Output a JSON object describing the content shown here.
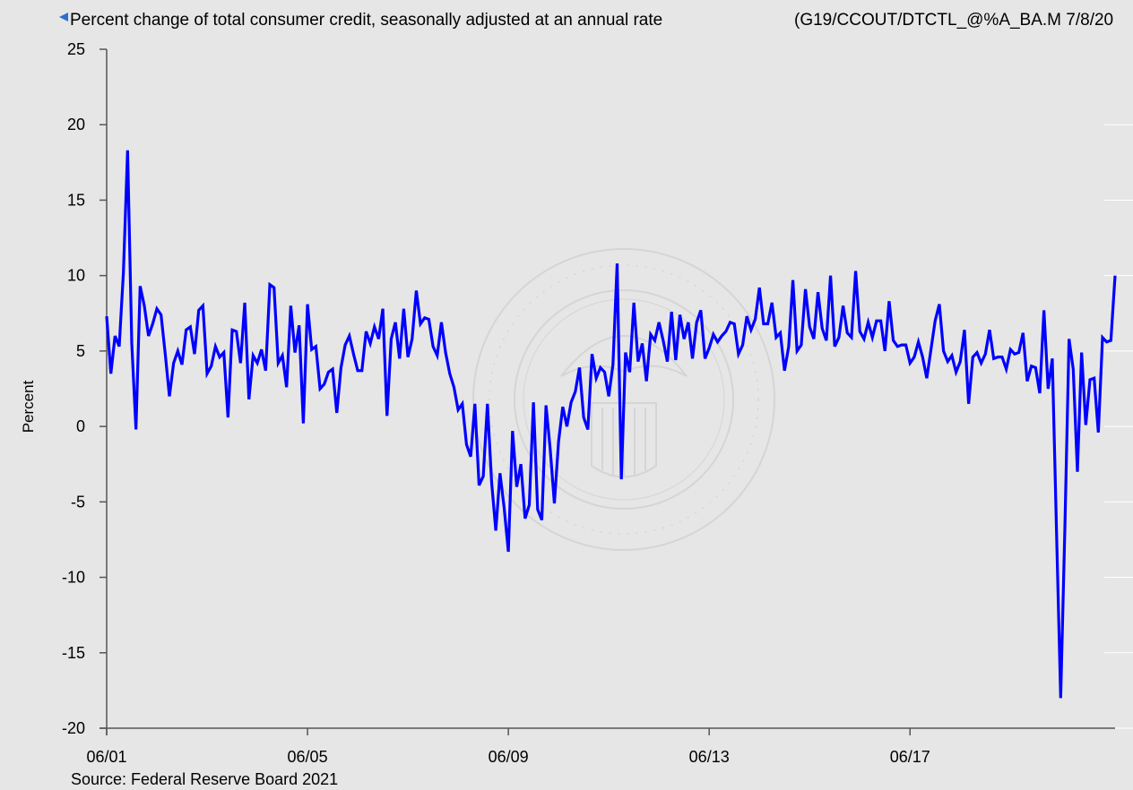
{
  "header": {
    "title": "Percent change of total consumer credit, seasonally adjusted at an annual rate",
    "series_code": "(G19/CCOUT/DTCTL_@%A_BA.M 7/8/20"
  },
  "footer": {
    "source": "Source: Federal Reserve Board 2021"
  },
  "colors": {
    "background": "#e6e6e6",
    "line": "#0000ff",
    "axis": "#555555",
    "gridline": "#ffffff",
    "back_arrow": "#2a6fcf"
  },
  "icons": {
    "back": "back-arrow-icon"
  },
  "chart_data": {
    "type": "line",
    "title": "Percent change of total consumer credit, seasonally adjusted at an annual rate",
    "xlabel": "",
    "ylabel": "Percent",
    "ylim": [
      -20,
      25
    ],
    "yticks": [
      "25",
      "20",
      "15",
      "10",
      "5",
      "0",
      "-5",
      "-10",
      "-15",
      "-20"
    ],
    "ytick_values": [
      25,
      20,
      15,
      10,
      5,
      0,
      -5,
      -10,
      -15,
      -20
    ],
    "xticks": [
      "06/01",
      "06/05",
      "06/09",
      "06/13",
      "06/17"
    ],
    "x_start": "2001-06",
    "x_end": "2021-05",
    "grid": false,
    "legend": "none",
    "series": [
      {
        "values": [
          7.3,
          3.5,
          6.0,
          5.3,
          10.2,
          18.3,
          5.5,
          -0.2,
          9.3,
          8.0,
          6.0,
          6.8,
          7.8,
          7.4,
          4.8,
          2.0,
          4.2,
          5.0,
          4.1,
          6.4,
          6.6,
          4.8,
          7.7,
          8.0,
          3.5,
          4.0,
          5.3,
          4.6,
          4.9,
          0.6,
          6.4,
          6.3,
          4.2,
          8.2,
          1.8,
          4.7,
          4.2,
          5.1,
          3.7,
          9.4,
          9.2,
          4.2,
          4.7,
          2.6,
          8.0,
          4.9,
          6.7,
          0.2,
          8.1,
          5.1,
          5.3,
          2.5,
          2.8,
          3.6,
          3.8,
          0.9,
          3.9,
          5.4,
          6.0,
          4.8,
          3.7,
          3.7,
          6.3,
          5.5,
          6.6,
          5.8,
          7.8,
          0.7,
          5.8,
          6.9,
          4.5,
          7.8,
          4.6,
          5.8,
          9.0,
          6.8,
          7.2,
          7.1,
          5.3,
          4.7,
          6.9,
          4.9,
          3.5,
          2.6,
          1.1,
          1.5,
          -1.2,
          -2.0,
          1.5,
          -3.9,
          -3.3,
          1.5,
          -3.7,
          -6.9,
          -3.1,
          -5.4,
          -8.3,
          -0.3,
          -4.0,
          -2.5,
          -6.1,
          -5.2,
          1.6,
          -5.5,
          -6.2,
          1.4,
          -1.5,
          -5.1,
          -1.0,
          1.3,
          0.0,
          1.6,
          2.3,
          3.9,
          0.6,
          -0.2,
          4.8,
          3.2,
          3.9,
          3.6,
          2.0,
          4.1,
          10.8,
          -3.5,
          4.9,
          3.6,
          8.2,
          4.3,
          5.5,
          3.0,
          6.1,
          5.7,
          6.9,
          5.7,
          4.3,
          7.6,
          4.4,
          7.4,
          5.8,
          6.9,
          4.5,
          6.9,
          7.7,
          4.5,
          5.2,
          6.1,
          5.6,
          6.0,
          6.3,
          6.9,
          6.8,
          4.8,
          5.4,
          7.3,
          6.4,
          7.1,
          9.2,
          6.8,
          6.8,
          8.2,
          5.9,
          6.2,
          3.7,
          5.3,
          9.7,
          5.0,
          5.4,
          9.1,
          6.6,
          5.8,
          8.9,
          6.5,
          5.7,
          10.0,
          5.3,
          5.9,
          8.0,
          6.2,
          5.9,
          10.3,
          6.3,
          5.8,
          6.9,
          5.9,
          7.0,
          7.0,
          5.0,
          8.3,
          5.7,
          5.3,
          5.4,
          5.4,
          4.2,
          4.6,
          5.6,
          4.6,
          3.2,
          5.1,
          7.0,
          8.1,
          5.0,
          4.3,
          4.7,
          3.6,
          4.3,
          6.4,
          1.5,
          4.6,
          4.9,
          4.2,
          4.8,
          6.4,
          4.5,
          4.6,
          4.6,
          3.8,
          5.1,
          4.8,
          4.9,
          6.2,
          3.0,
          4.0,
          3.9,
          2.2,
          7.7,
          2.5,
          4.5,
          -6.9,
          -18.0,
          -6.8,
          5.8,
          3.8,
          -3.0,
          4.9,
          0.1,
          3.1,
          3.2,
          -0.4,
          5.9,
          5.6,
          5.7,
          10.0
        ]
      }
    ]
  }
}
